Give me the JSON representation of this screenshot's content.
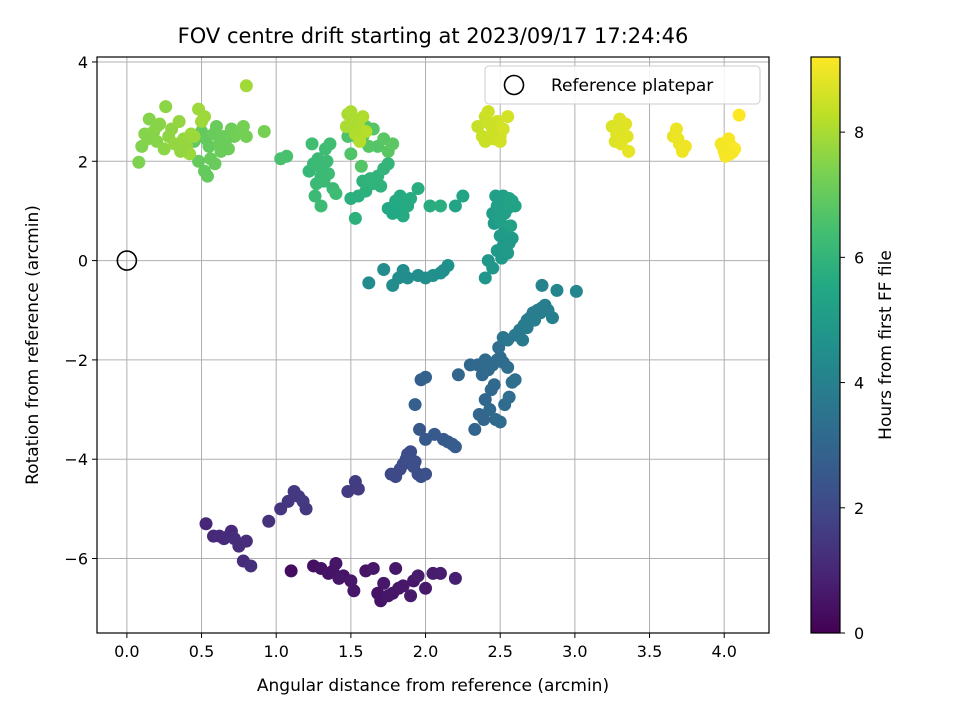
{
  "chart_data": {
    "type": "scatter",
    "title": "FOV centre drift starting at 2023/09/17 17:24:46",
    "xlabel": "Angular distance from reference (arcmin)",
    "ylabel": "Rotation from reference (arcmin)",
    "xlim": [
      -0.2,
      4.3
    ],
    "ylim": [
      -7.5,
      4.1
    ],
    "xticks": [
      0.0,
      0.5,
      1.0,
      1.5,
      2.0,
      2.5,
      3.0,
      3.5,
      4.0
    ],
    "xtick_labels": [
      "0.0",
      "0.5",
      "1.0",
      "1.5",
      "2.0",
      "2.5",
      "3.0",
      "3.5",
      "4.0"
    ],
    "yticks": [
      -6,
      -4,
      -2,
      0,
      2,
      4
    ],
    "ytick_labels": [
      "−6",
      "−4",
      "−2",
      "0",
      "2",
      "4"
    ],
    "grid": true,
    "legend": {
      "position": "top-right",
      "entries": [
        "Reference platepar"
      ]
    },
    "reference_point": {
      "x": 0.0,
      "y": 0.0
    },
    "colorbar": {
      "label": "Hours from first FF file",
      "range": [
        0,
        9.2
      ],
      "colormap": "viridis",
      "ticks": [
        0,
        2,
        4,
        6,
        8
      ],
      "tick_labels": [
        "0",
        "2",
        "4",
        "6",
        "8"
      ]
    },
    "series": [
      {
        "x": [
          1.1,
          1.25,
          1.3,
          1.35,
          1.4,
          1.45,
          1.5,
          1.52,
          1.6,
          1.65,
          1.68,
          1.7,
          1.75,
          1.8,
          1.82,
          1.85,
          1.9,
          1.92,
          1.95,
          2.0,
          2.05,
          2.1,
          2.2,
          1.38,
          1.42,
          1.72,
          1.78
        ],
        "y": [
          -6.25,
          -6.15,
          -6.2,
          -6.3,
          -6.1,
          -6.35,
          -6.45,
          -6.65,
          -6.25,
          -6.2,
          -6.7,
          -6.85,
          -6.75,
          -6.2,
          -6.6,
          -6.55,
          -6.75,
          -6.45,
          -6.35,
          -6.6,
          -6.3,
          -6.3,
          -6.4,
          -6.25,
          -6.4,
          -6.5,
          -6.7
        ],
        "hours": [
          0.3,
          0.4,
          0.45,
          0.5,
          0.55,
          0.5,
          0.6,
          0.55,
          0.5,
          0.6,
          0.45,
          0.5,
          0.55,
          0.6,
          0.55,
          0.6,
          0.65,
          0.6,
          0.7,
          0.65,
          0.7,
          0.75,
          0.8,
          0.5,
          0.55,
          0.6,
          0.55
        ]
      },
      {
        "x": [
          0.53,
          0.58,
          0.62,
          0.65,
          0.68,
          0.7,
          0.72,
          0.75,
          0.78,
          0.8,
          0.83,
          0.95
        ],
        "y": [
          -5.3,
          -5.55,
          -5.55,
          -5.6,
          -5.55,
          -5.45,
          -5.6,
          -5.75,
          -6.05,
          -5.65,
          -6.15,
          -5.25
        ],
        "hours": [
          1.0,
          1.05,
          1.1,
          1.1,
          1.15,
          1.1,
          1.2,
          1.2,
          1.15,
          1.2,
          1.25,
          1.3
        ]
      },
      {
        "x": [
          1.03,
          1.08,
          1.12,
          1.15,
          1.18,
          1.2,
          1.48,
          1.53,
          1.55
        ],
        "y": [
          -5.0,
          -4.85,
          -4.65,
          -4.75,
          -4.85,
          -5.0,
          -4.65,
          -4.45,
          -4.6
        ],
        "hours": [
          1.4,
          1.45,
          1.5,
          1.5,
          1.55,
          1.5,
          1.6,
          1.65,
          1.6
        ]
      },
      {
        "x": [
          1.77,
          1.8,
          1.83,
          1.85,
          1.87,
          1.9,
          1.93,
          1.95,
          1.97,
          2.0,
          1.88,
          1.92
        ],
        "y": [
          -4.3,
          -4.35,
          -4.2,
          -4.1,
          -4.0,
          -3.85,
          -4.05,
          -4.3,
          -4.35,
          -4.3,
          -3.9,
          -4.15
        ],
        "hours": [
          2.0,
          2.05,
          2.05,
          2.1,
          2.15,
          2.1,
          2.2,
          2.15,
          2.2,
          2.25,
          2.15,
          2.2
        ]
      },
      {
        "x": [
          1.96,
          2.0,
          2.06,
          2.12,
          2.15,
          2.18,
          2.2,
          1.97,
          1.93
        ],
        "y": [
          -3.4,
          -3.6,
          -3.5,
          -3.6,
          -3.65,
          -3.7,
          -3.75,
          -2.4,
          -2.9
        ],
        "hours": [
          2.5,
          2.55,
          2.6,
          2.6,
          2.65,
          2.7,
          2.7,
          2.8,
          2.75
        ]
      },
      {
        "x": [
          2.0,
          2.22,
          2.3,
          2.35,
          2.4,
          2.38,
          2.42,
          2.45,
          2.48,
          2.5,
          2.52,
          2.55,
          2.58,
          2.46,
          2.44,
          2.4,
          2.36,
          2.33,
          2.43,
          2.47,
          2.5,
          2.53,
          2.56,
          2.6,
          2.49,
          2.39
        ],
        "y": [
          -2.35,
          -2.3,
          -2.1,
          -2.1,
          -2.0,
          -2.3,
          -2.2,
          -2.1,
          -2.0,
          -1.95,
          -2.05,
          -2.15,
          -2.45,
          -2.5,
          -2.6,
          -2.8,
          -3.1,
          -3.4,
          -3.0,
          -3.2,
          -3.25,
          -2.9,
          -2.75,
          -2.4,
          -1.75,
          -3.2
        ],
        "hours": [
          2.9,
          3.0,
          3.05,
          3.1,
          3.15,
          3.1,
          3.15,
          3.2,
          3.25,
          3.2,
          3.25,
          3.3,
          3.35,
          3.2,
          3.1,
          3.05,
          3.0,
          2.95,
          3.1,
          3.15,
          3.2,
          3.25,
          3.3,
          3.35,
          3.3,
          3.0
        ]
      },
      {
        "x": [
          2.52,
          2.55,
          2.6,
          2.63,
          2.66,
          2.68,
          2.7,
          2.72,
          2.75,
          2.78,
          2.8,
          2.82,
          2.85,
          2.73,
          2.77,
          2.68,
          2.65
        ],
        "y": [
          -1.55,
          -1.6,
          -1.5,
          -1.4,
          -1.3,
          -1.2,
          -1.15,
          -1.05,
          -1.0,
          -0.95,
          -0.9,
          -1.0,
          -1.15,
          -1.2,
          -1.05,
          -1.35,
          -1.6
        ],
        "hours": [
          3.6,
          3.65,
          3.7,
          3.75,
          3.8,
          3.8,
          3.85,
          3.85,
          3.9,
          3.9,
          3.95,
          3.9,
          3.95,
          3.85,
          3.9,
          3.8,
          3.75
        ]
      },
      {
        "x": [
          2.78,
          2.88,
          3.01,
          1.62,
          1.72,
          1.78,
          1.85,
          1.88,
          1.95,
          2.0,
          2.05,
          2.1,
          2.15,
          1.82,
          2.12
        ],
        "y": [
          -0.5,
          -0.6,
          -0.62,
          -0.45,
          -0.18,
          -0.5,
          -0.2,
          -0.35,
          -0.3,
          -0.35,
          -0.3,
          -0.25,
          -0.1,
          -0.35,
          -0.2
        ],
        "hours": [
          4.1,
          4.15,
          4.2,
          4.35,
          4.4,
          4.4,
          4.45,
          4.45,
          4.5,
          4.5,
          4.55,
          4.55,
          4.6,
          4.45,
          4.55
        ]
      },
      {
        "x": [
          2.4,
          2.42,
          2.45,
          2.48,
          2.5,
          2.52,
          2.55,
          2.58,
          2.46,
          2.53,
          2.56,
          2.49,
          2.51,
          2.54
        ],
        "y": [
          -0.35,
          0.0,
          -0.15,
          0.2,
          0.5,
          0.3,
          0.15,
          0.45,
          0.75,
          0.6,
          0.35,
          0.9,
          0.05,
          0.25
        ],
        "hours": [
          4.8,
          4.85,
          4.85,
          4.9,
          4.95,
          4.9,
          4.95,
          5.0,
          5.0,
          5.05,
          5.0,
          5.05,
          4.9,
          4.95
        ]
      },
      {
        "x": [
          2.45,
          2.48,
          2.5,
          2.52,
          2.55,
          2.58,
          2.47,
          2.53,
          2.56,
          2.6,
          2.5,
          2.57,
          2.25,
          2.2
        ],
        "y": [
          0.95,
          1.1,
          1.2,
          1.3,
          1.05,
          1.2,
          1.3,
          0.95,
          1.25,
          1.1,
          0.8,
          0.7,
          1.3,
          1.1
        ],
        "hours": [
          5.1,
          5.15,
          5.2,
          5.2,
          5.25,
          5.25,
          5.15,
          5.2,
          5.3,
          5.3,
          5.15,
          5.25,
          5.35,
          5.35
        ]
      },
      {
        "x": [
          1.75,
          1.8,
          1.82,
          1.85,
          1.88,
          1.9,
          1.83,
          1.95,
          2.03,
          2.1,
          1.78,
          1.86
        ],
        "y": [
          1.05,
          1.2,
          1.0,
          0.9,
          1.1,
          1.25,
          1.3,
          1.45,
          1.1,
          1.1,
          0.95,
          1.15
        ],
        "hours": [
          5.5,
          5.55,
          5.55,
          5.6,
          5.6,
          5.65,
          5.6,
          5.7,
          5.7,
          5.75,
          5.5,
          5.6
        ]
      },
      {
        "x": [
          1.55,
          1.6,
          1.65,
          1.68,
          1.72,
          1.5,
          1.53,
          1.58,
          1.63,
          1.7,
          1.75
        ],
        "y": [
          1.3,
          1.4,
          1.55,
          1.7,
          1.85,
          1.25,
          0.85,
          1.6,
          1.65,
          1.5,
          1.95
        ],
        "hours": [
          5.8,
          5.85,
          5.9,
          5.95,
          6.0,
          5.8,
          5.85,
          5.9,
          5.95,
          5.9,
          6.0
        ]
      },
      {
        "x": [
          1.22,
          1.25,
          1.28,
          1.3,
          1.32,
          1.35,
          1.38,
          1.4,
          1.26,
          1.3,
          1.33,
          1.36,
          1.24,
          1.29,
          1.34,
          1.27,
          1.31
        ],
        "y": [
          1.8,
          1.95,
          2.05,
          1.7,
          1.6,
          1.75,
          1.45,
          1.35,
          1.3,
          1.1,
          2.25,
          2.35,
          2.35,
          1.9,
          2.0,
          1.55,
          1.85
        ],
        "hours": [
          6.1,
          6.15,
          6.2,
          6.15,
          6.2,
          6.25,
          6.2,
          6.3,
          6.2,
          6.25,
          6.3,
          6.35,
          6.35,
          6.2,
          6.25,
          6.2,
          6.2
        ]
      },
      {
        "x": [
          1.03,
          1.07,
          1.48,
          1.52,
          1.55,
          1.58,
          1.6,
          1.65,
          1.68,
          1.72,
          1.75,
          1.78,
          1.5,
          1.57,
          1.62
        ],
        "y": [
          2.05,
          2.1,
          2.5,
          2.6,
          2.45,
          2.5,
          2.7,
          2.65,
          2.3,
          2.45,
          2.2,
          2.35,
          2.15,
          1.9,
          2.3
        ],
        "hours": [
          6.5,
          6.5,
          6.6,
          6.65,
          6.7,
          6.7,
          6.75,
          6.75,
          6.7,
          6.8,
          6.8,
          6.85,
          6.65,
          6.7,
          6.75
        ]
      },
      {
        "x": [
          0.45,
          0.5,
          0.53,
          0.55,
          0.58,
          0.6,
          0.62,
          0.65,
          0.68,
          0.7,
          0.72,
          0.75,
          0.78,
          0.8,
          0.52,
          0.56,
          0.63,
          0.66,
          0.92,
          0.54,
          0.59,
          0.48
        ],
        "y": [
          2.4,
          2.6,
          2.45,
          2.3,
          2.55,
          2.7,
          2.35,
          2.5,
          2.25,
          2.65,
          2.5,
          2.6,
          2.7,
          2.5,
          1.8,
          2.05,
          2.2,
          2.4,
          2.6,
          1.7,
          1.95,
          2.0
        ],
        "hours": [
          6.9,
          6.95,
          7.0,
          7.0,
          7.05,
          7.05,
          7.1,
          7.1,
          7.15,
          7.15,
          7.2,
          7.2,
          7.25,
          7.25,
          7.0,
          7.05,
          7.1,
          7.1,
          7.3,
          7.0,
          7.05,
          7.0
        ]
      },
      {
        "x": [
          0.08,
          0.1,
          0.12,
          0.15,
          0.18,
          0.2,
          0.22,
          0.25,
          0.28,
          0.3,
          0.32,
          0.35,
          0.38,
          0.4,
          0.42,
          0.45,
          0.48,
          0.5,
          0.14,
          0.2,
          0.26,
          0.36,
          0.8,
          0.52,
          0.43
        ],
        "y": [
          1.98,
          2.3,
          2.55,
          2.85,
          2.6,
          2.4,
          2.75,
          2.25,
          2.5,
          2.65,
          2.35,
          2.8,
          2.45,
          2.3,
          2.15,
          2.5,
          3.05,
          2.8,
          2.45,
          2.7,
          3.1,
          2.2,
          3.52,
          2.9,
          2.55
        ],
        "hours": [
          7.4,
          7.45,
          7.5,
          7.5,
          7.55,
          7.55,
          7.6,
          7.6,
          7.65,
          7.65,
          7.7,
          7.7,
          7.75,
          7.75,
          7.8,
          7.8,
          7.85,
          7.85,
          7.5,
          7.55,
          7.6,
          7.7,
          7.9,
          7.85,
          7.8
        ]
      },
      {
        "x": [
          1.48,
          1.5,
          1.52,
          1.55,
          1.58,
          1.6,
          1.53,
          1.47,
          1.56,
          1.51
        ],
        "y": [
          2.95,
          3.0,
          2.85,
          2.75,
          2.9,
          2.6,
          2.55,
          2.7,
          2.4,
          2.8
        ],
        "hours": [
          8.0,
          8.05,
          8.05,
          8.1,
          8.1,
          8.15,
          8.1,
          8.0,
          8.15,
          8.05
        ]
      },
      {
        "x": [
          2.35,
          2.38,
          2.4,
          2.42,
          2.45,
          2.48,
          2.5,
          2.52,
          2.55,
          2.4,
          2.46,
          2.43,
          2.5
        ],
        "y": [
          2.7,
          2.5,
          2.9,
          3.0,
          2.6,
          2.8,
          2.5,
          2.65,
          2.9,
          2.4,
          2.45,
          2.75,
          2.4
        ],
        "hours": [
          8.4,
          8.45,
          8.45,
          8.5,
          8.5,
          8.55,
          8.55,
          8.6,
          8.6,
          8.45,
          8.5,
          8.5,
          8.55
        ]
      },
      {
        "x": [
          3.25,
          3.28,
          3.3,
          3.32,
          3.35,
          3.27,
          3.31,
          3.34,
          3.36,
          3.29
        ],
        "y": [
          2.7,
          2.55,
          2.85,
          2.6,
          2.5,
          2.4,
          2.35,
          2.75,
          2.2,
          2.65
        ],
        "hours": [
          8.7,
          8.75,
          8.75,
          8.8,
          8.8,
          8.75,
          8.8,
          8.8,
          8.85,
          8.75
        ]
      },
      {
        "x": [
          3.66,
          3.68,
          3.7,
          3.72,
          3.74,
          3.69
        ],
        "y": [
          2.5,
          2.65,
          2.35,
          2.2,
          2.3,
          2.45
        ],
        "hours": [
          8.9,
          8.95,
          8.95,
          9.0,
          9.0,
          8.95
        ]
      },
      {
        "x": [
          3.98,
          4.0,
          4.02,
          4.04,
          4.05,
          4.07,
          4.01,
          4.03,
          4.06,
          4.1,
          3.99,
          4.04
        ],
        "y": [
          2.35,
          2.2,
          2.4,
          2.15,
          2.3,
          2.25,
          2.1,
          2.45,
          2.2,
          2.93,
          2.3,
          2.15
        ],
        "hours": [
          9.05,
          9.1,
          9.1,
          9.1,
          9.15,
          9.15,
          9.1,
          9.1,
          9.15,
          9.2,
          9.05,
          9.1
        ]
      }
    ]
  }
}
